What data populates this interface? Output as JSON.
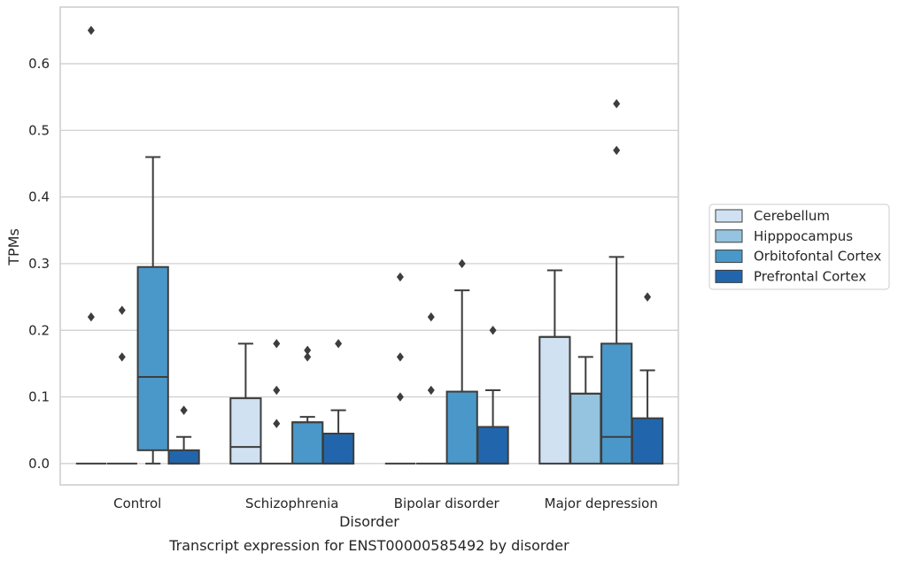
{
  "caption": "Transcript expression for ENST00000585492 by disorder",
  "chart_data": {
    "type": "box",
    "title": "",
    "xlabel": "Disorder",
    "ylabel": "TPMs",
    "ylim": [
      -0.032,
      0.685
    ],
    "yticks": [
      "0.0",
      "0.1",
      "0.2",
      "0.3",
      "0.4",
      "0.5",
      "0.6"
    ],
    "grid": "horizontal",
    "legend_position": "right",
    "categories": [
      "Control",
      "Schizophrenia",
      "Bipolar disorder",
      "Major depression"
    ],
    "series": [
      {
        "name": "Cerebellum",
        "color": "#d0e1f2",
        "boxes": [
          {
            "q1": 0,
            "median": 0,
            "q3": 0,
            "whisker_low": 0,
            "whisker_high": 0,
            "fliers": [
              0.65,
              0.22
            ]
          },
          {
            "q1": 0,
            "median": 0.025,
            "q3": 0.098,
            "whisker_low": 0,
            "whisker_high": 0.18,
            "fliers": []
          },
          {
            "q1": 0,
            "median": 0,
            "q3": 0,
            "whisker_low": 0,
            "whisker_high": 0,
            "fliers": [
              0.28,
              0.16,
              0.1
            ]
          },
          {
            "q1": 0,
            "median": 0.19,
            "q3": 0.19,
            "whisker_low": 0,
            "whisker_high": 0.29,
            "fliers": []
          }
        ]
      },
      {
        "name": "Hipppocampus",
        "color": "#94c4df",
        "boxes": [
          {
            "q1": 0,
            "median": 0,
            "q3": 0,
            "whisker_low": 0,
            "whisker_high": 0,
            "fliers": [
              0.23,
              0.16
            ]
          },
          {
            "q1": 0,
            "median": 0,
            "q3": 0,
            "whisker_low": 0,
            "whisker_high": 0,
            "fliers": [
              0.18,
              0.11,
              0.06
            ]
          },
          {
            "q1": 0,
            "median": 0,
            "q3": 0,
            "whisker_low": 0,
            "whisker_high": 0,
            "fliers": [
              0.22,
              0.11
            ]
          },
          {
            "q1": 0,
            "median": 0.105,
            "q3": 0.105,
            "whisker_low": 0,
            "whisker_high": 0.16,
            "fliers": []
          }
        ]
      },
      {
        "name": "Orbitofontal Cortex",
        "color": "#4a98c9",
        "boxes": [
          {
            "q1": 0.02,
            "median": 0.13,
            "q3": 0.295,
            "whisker_low": 0,
            "whisker_high": 0.46,
            "fliers": []
          },
          {
            "q1": 0,
            "median": 0.062,
            "q3": 0.062,
            "whisker_low": 0,
            "whisker_high": 0.07,
            "fliers": [
              0.17,
              0.16
            ]
          },
          {
            "q1": 0,
            "median": 0,
            "q3": 0.108,
            "whisker_low": 0,
            "whisker_high": 0.26,
            "fliers": [
              0.3
            ]
          },
          {
            "q1": 0,
            "median": 0.04,
            "q3": 0.18,
            "whisker_low": 0,
            "whisker_high": 0.31,
            "fliers": [
              0.54,
              0.47
            ]
          }
        ]
      },
      {
        "name": "Prefrontal Cortex",
        "color": "#2166ac",
        "boxes": [
          {
            "q1": 0,
            "median": 0,
            "q3": 0.02,
            "whisker_low": 0,
            "whisker_high": 0.04,
            "fliers": [
              0.08,
              0.08
            ]
          },
          {
            "q1": 0,
            "median": 0,
            "q3": 0.045,
            "whisker_low": 0,
            "whisker_high": 0.08,
            "fliers": [
              0.18
            ]
          },
          {
            "q1": 0,
            "median": 0,
            "q3": 0.055,
            "whisker_low": 0,
            "whisker_high": 0.11,
            "fliers": [
              0.2
            ]
          },
          {
            "q1": 0,
            "median": 0,
            "q3": 0.068,
            "whisker_low": 0,
            "whisker_high": 0.14,
            "fliers": [
              0.25
            ]
          }
        ]
      }
    ]
  }
}
